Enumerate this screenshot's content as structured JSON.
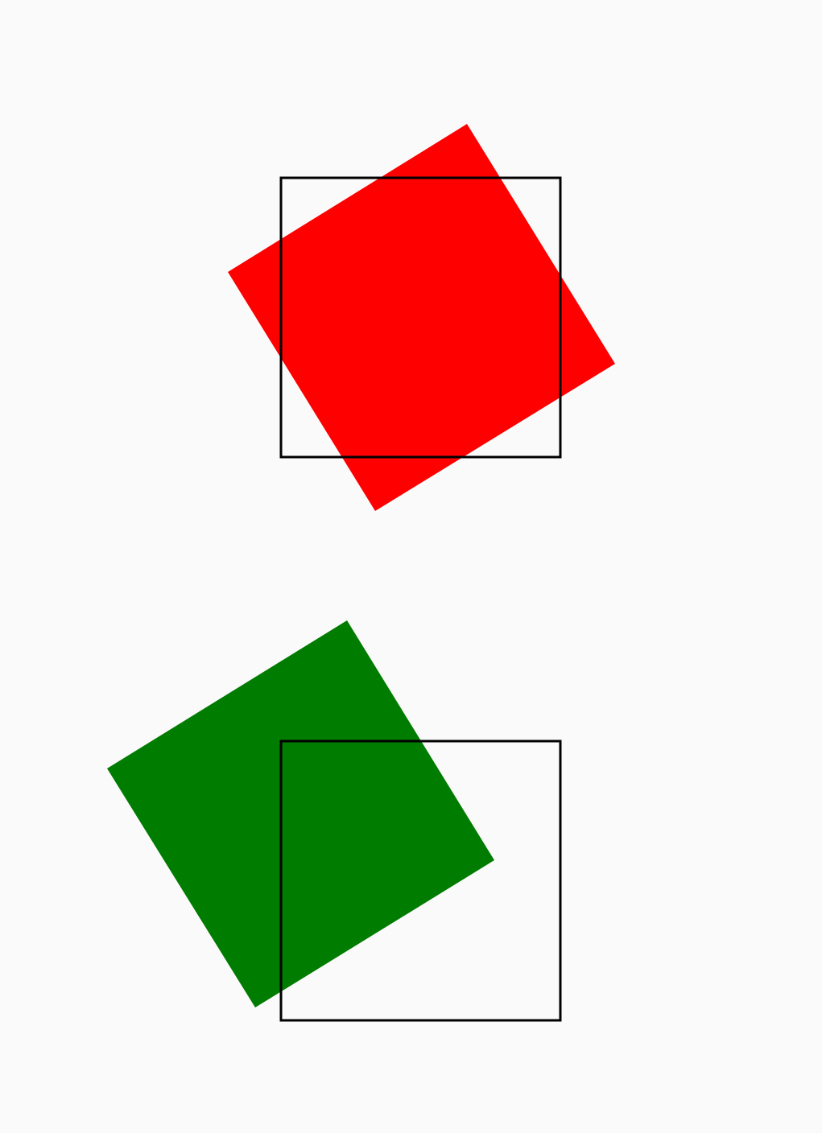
{
  "colors": {
    "background": "#fafafa",
    "square_top_fill": "#ff0000",
    "square_bottom_fill": "#007c00",
    "outline_stroke": "#000000"
  },
  "figures": [
    {
      "name": "top-pair",
      "rotated_square": {
        "color": "red",
        "rotation_deg": -32
      },
      "outline_square": {
        "color": "black",
        "fill": "none"
      }
    },
    {
      "name": "bottom-pair",
      "rotated_square": {
        "color": "green",
        "rotation_deg": -32
      },
      "outline_square": {
        "color": "black",
        "fill": "none"
      }
    }
  ]
}
